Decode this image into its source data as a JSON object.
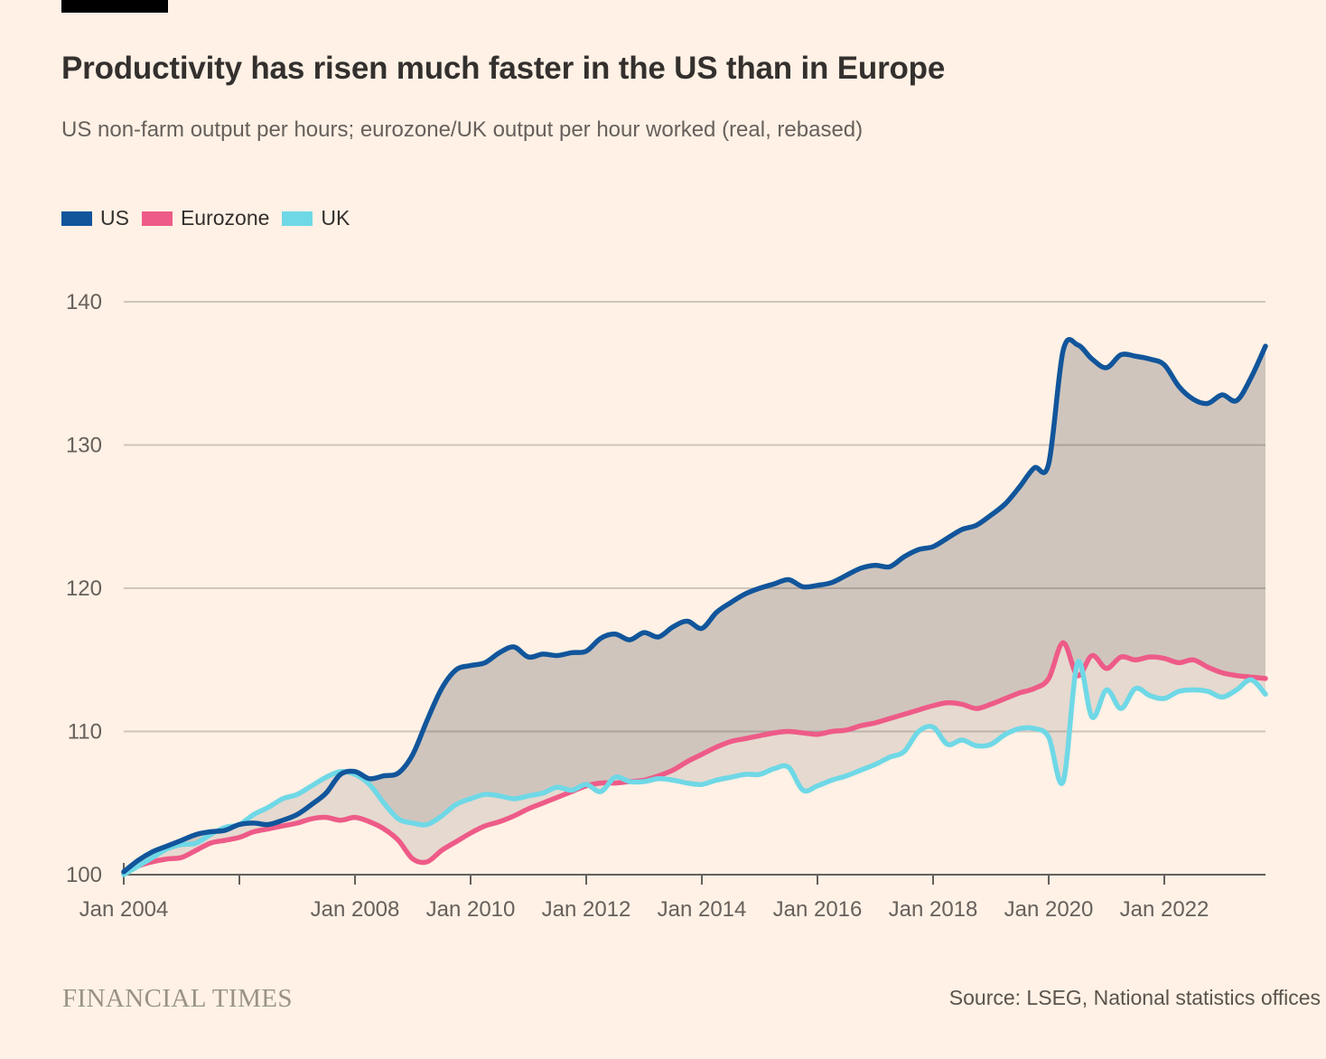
{
  "header": {
    "title": "Productivity has risen much faster in the US than in Europe",
    "subtitle": "US non-farm output per hours; eurozone/UK output per hour worked (real, rebased)"
  },
  "legend": {
    "items": [
      {
        "label": "US",
        "color": "#11559B"
      },
      {
        "label": "Eurozone",
        "color": "#EE5B88"
      },
      {
        "label": "UK",
        "color": "#6FD8E6"
      }
    ]
  },
  "colors": {
    "background": "#FFF1E5",
    "us_line": "#11559B",
    "eurozone_line": "#EE5B88",
    "uk_line": "#6FD8E6",
    "band_fill": "rgba(64,61,58,0.13)",
    "gridline": "#CFC5BA",
    "axis": "#66605C",
    "axis_text": "#66605C"
  },
  "chart_data": {
    "type": "line",
    "title": "Productivity has risen much faster in the US than in Europe",
    "subtitle": "US non-farm output per hours; eurozone/UK output per hour worked (real, rebased)",
    "x_unit": "year, quarterly from Jan 2004",
    "x_start": 2004.0,
    "x_step": 0.25,
    "ylim": [
      100,
      141
    ],
    "y_ticks": [
      "100",
      "110",
      "120",
      "130",
      "140"
    ],
    "y_tick_values": [
      100,
      110,
      120,
      130,
      140
    ],
    "x_ticks": [
      {
        "year": 2004,
        "label": "Jan 2004"
      },
      {
        "year": 2006,
        "label": ""
      },
      {
        "year": 2008,
        "label": "Jan 2008"
      },
      {
        "year": 2010,
        "label": "Jan 2010"
      },
      {
        "year": 2012,
        "label": "Jan 2012"
      },
      {
        "year": 2014,
        "label": "Jan 2014"
      },
      {
        "year": 2016,
        "label": "Jan 2016"
      },
      {
        "year": 2018,
        "label": "Jan 2018"
      },
      {
        "year": 2020,
        "label": "Jan 2020"
      },
      {
        "year": 2022,
        "label": "Jan 2022"
      }
    ],
    "grid": "horizontal",
    "legend_position": "top-left",
    "series": [
      {
        "name": "US",
        "color": "#11559B",
        "values": [
          100.2,
          101.0,
          101.6,
          102.0,
          102.4,
          102.8,
          103.0,
          103.1,
          103.5,
          103.6,
          103.5,
          103.8,
          104.2,
          104.9,
          105.7,
          107.0,
          107.2,
          106.7,
          106.9,
          107.1,
          108.4,
          110.8,
          113.0,
          114.3,
          114.6,
          114.8,
          115.5,
          115.9,
          115.2,
          115.4,
          115.3,
          115.5,
          115.6,
          116.5,
          116.8,
          116.4,
          116.9,
          116.6,
          117.3,
          117.7,
          117.2,
          118.3,
          119.0,
          119.6,
          120.0,
          120.3,
          120.6,
          120.1,
          120.2,
          120.4,
          120.9,
          121.4,
          121.6,
          121.5,
          122.2,
          122.7,
          122.9,
          123.5,
          124.1,
          124.4,
          125.1,
          125.9,
          127.1,
          128.4,
          128.7,
          136.6,
          137.0,
          136.0,
          135.4,
          136.3,
          136.2,
          136.0,
          135.6,
          134.1,
          133.2,
          132.9,
          133.5,
          133.1,
          134.7,
          136.9
        ]
      },
      {
        "name": "Eurozone",
        "color": "#EE5B88",
        "values": [
          100.1,
          100.6,
          100.9,
          101.1,
          101.2,
          101.7,
          102.2,
          102.4,
          102.6,
          103.0,
          103.2,
          103.4,
          103.6,
          103.9,
          104.0,
          103.8,
          104.0,
          103.7,
          103.2,
          102.4,
          101.1,
          100.9,
          101.7,
          102.3,
          102.9,
          103.4,
          103.7,
          104.1,
          104.6,
          105.0,
          105.4,
          105.8,
          106.2,
          106.4,
          106.4,
          106.5,
          106.6,
          106.9,
          107.3,
          107.9,
          108.4,
          108.9,
          109.3,
          109.5,
          109.7,
          109.9,
          110.0,
          109.9,
          109.8,
          110.0,
          110.1,
          110.4,
          110.6,
          110.9,
          111.2,
          111.5,
          111.8,
          112.0,
          111.9,
          111.6,
          111.9,
          112.3,
          112.7,
          113.0,
          113.7,
          116.2,
          113.9,
          115.3,
          114.4,
          115.2,
          115.0,
          115.2,
          115.1,
          114.8,
          115.0,
          114.5,
          114.1,
          113.9,
          113.8,
          113.7
        ]
      },
      {
        "name": "UK",
        "color": "#6FD8E6",
        "values": [
          100.0,
          100.6,
          101.2,
          101.8,
          102.1,
          102.2,
          102.8,
          103.3,
          103.5,
          104.2,
          104.7,
          105.3,
          105.6,
          106.2,
          106.8,
          107.2,
          107.0,
          106.3,
          105.0,
          103.9,
          103.6,
          103.5,
          104.1,
          104.9,
          105.3,
          105.6,
          105.5,
          105.3,
          105.5,
          105.7,
          106.1,
          105.9,
          106.3,
          105.8,
          106.8,
          106.5,
          106.5,
          106.7,
          106.6,
          106.4,
          106.3,
          106.6,
          106.8,
          107.0,
          107.0,
          107.4,
          107.5,
          105.9,
          106.2,
          106.6,
          106.9,
          107.3,
          107.7,
          108.2,
          108.6,
          110.0,
          110.3,
          109.1,
          109.4,
          109.0,
          109.1,
          109.8,
          110.2,
          110.2,
          109.6,
          106.5,
          114.8,
          111.0,
          112.9,
          111.6,
          113.0,
          112.5,
          112.3,
          112.8,
          112.9,
          112.8,
          112.4,
          112.9,
          113.6,
          112.6
        ]
      }
    ]
  },
  "footer": {
    "brand": "FINANCIAL TIMES",
    "source": "Source: LSEG, National statistics offices"
  }
}
